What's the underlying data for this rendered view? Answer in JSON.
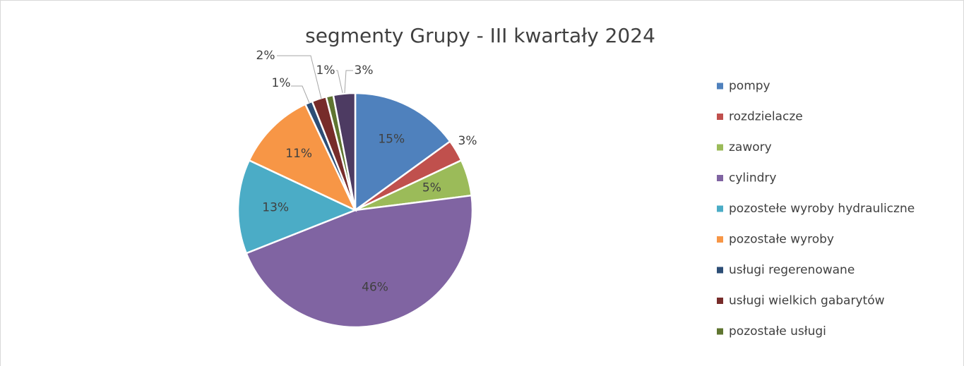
{
  "chart_data": {
    "type": "pie",
    "title": "segmenty Grupy - III kwartały 2024",
    "categories": [
      "pompy",
      "rozdzielacze",
      "zawory",
      "cylindry",
      "pozostełe wyroby hydrauliczne",
      "pozostałe wyroby",
      "usługi regerenowane",
      "usługi wielkich gabarytów",
      "pozostałe usługi",
      null
    ],
    "values": [
      15,
      3,
      5,
      46,
      13,
      11,
      1,
      2,
      1,
      3
    ],
    "value_labels": [
      "15%",
      "3%",
      "5%",
      "46%",
      "13%",
      "11%",
      "1%",
      "2%",
      "1%",
      "3%"
    ],
    "colors": [
      "#4f81bd",
      "#c0504d",
      "#9bbb59",
      "#8064a2",
      "#4bacc6",
      "#f79646",
      "#2c4d75",
      "#772c2a",
      "#5f7530",
      "#4d3b62"
    ],
    "legend": "right"
  }
}
